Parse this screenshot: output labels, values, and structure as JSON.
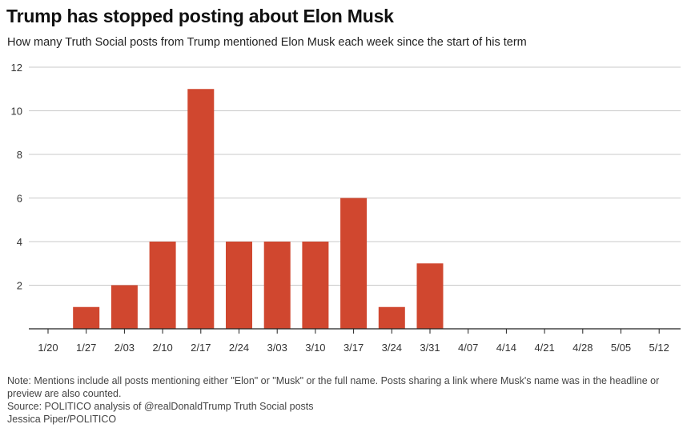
{
  "header": {
    "title": "Trump has stopped posting about Elon Musk",
    "subtitle": "How many Truth Social posts from Trump mentioned Elon Musk each week since the start of his term"
  },
  "chart_data": {
    "type": "bar",
    "title": "Trump has stopped posting about Elon Musk",
    "subtitle": "How many Truth Social posts from Trump mentioned Elon Musk each week since the start of his term",
    "xlabel": "",
    "ylabel": "",
    "categories": [
      "1/20",
      "1/27",
      "2/03",
      "2/10",
      "2/17",
      "2/24",
      "3/03",
      "3/10",
      "3/17",
      "3/24",
      "3/31",
      "4/07",
      "4/14",
      "4/21",
      "4/28",
      "5/05",
      "5/12"
    ],
    "values": [
      0,
      1,
      2,
      4,
      11,
      4,
      4,
      4,
      6,
      1,
      3,
      0,
      0,
      0,
      0,
      0,
      0
    ],
    "ylim": [
      0,
      12
    ],
    "yticks": [
      2,
      4,
      6,
      8,
      10,
      12
    ],
    "grid": true,
    "bar_color": "#d0472f"
  },
  "footer": {
    "note": "Note: Mentions include all posts mentioning either \"Elon\" or \"Musk\" or the full name. Posts sharing a link where Musk's name was in the headline or preview are also counted.",
    "source": "Source: POLITICO analysis of @realDonaldTrump Truth Social posts",
    "credit": "Jessica Piper/POLITICO"
  }
}
